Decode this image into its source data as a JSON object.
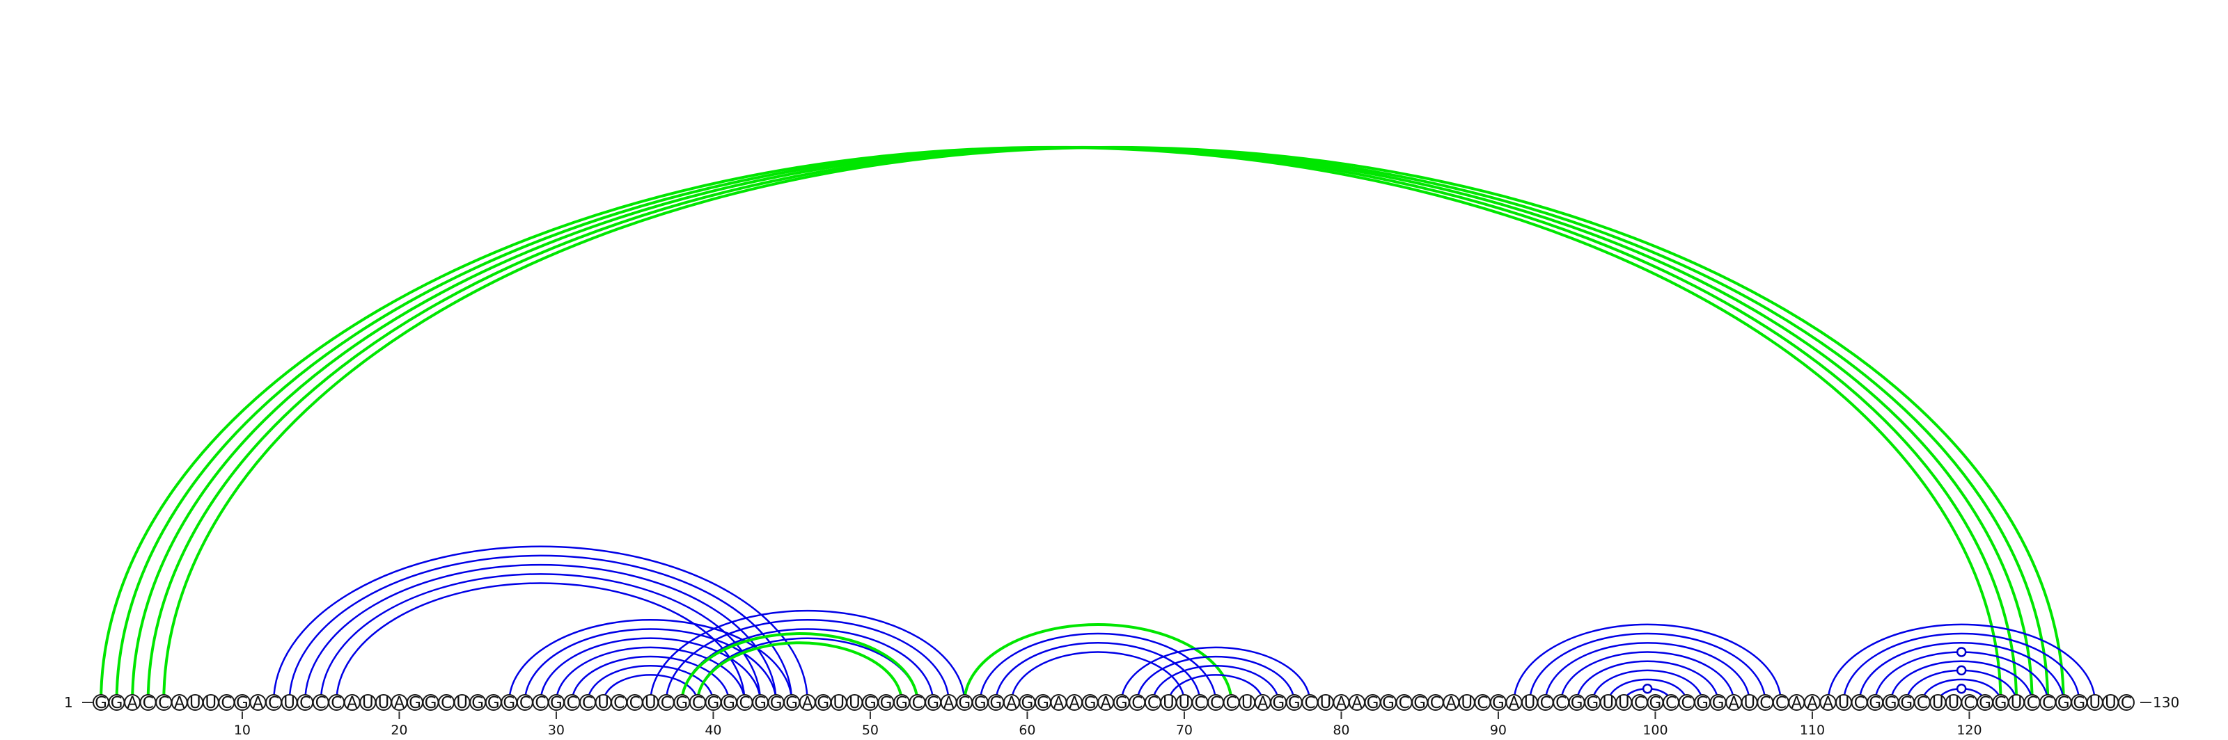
{
  "sequence": "GGACCAUUCGACUCCCAUUAGGCUGGGCCGCCUCCUCGCGGCGGGAGUUGGGCGAGGGAGGAAGAGCCUUCCCUAGGCUAAGGCGCAUCGAUCCGGUUCGCCGGAUCCAAAUCGGGCUUCGGUCCGGUUC",
  "start_label": "1",
  "end_label": "130",
  "tick_positions": [
    10,
    20,
    30,
    40,
    50,
    60,
    70,
    80,
    90,
    100,
    110,
    120
  ],
  "colors": {
    "primary_pairs": "#0000e6",
    "alternative_pairs": "#00e600",
    "marker": "#0000cc"
  },
  "arc_groups": [
    {
      "color": "alternative_pairs",
      "pairs": [
        [
          1,
          122
        ],
        [
          2,
          123
        ],
        [
          3,
          124
        ],
        [
          4,
          125
        ],
        [
          5,
          126
        ]
      ]
    },
    {
      "color": "primary_pairs",
      "pairs": [
        [
          12,
          46
        ],
        [
          13,
          45
        ],
        [
          14,
          44
        ],
        [
          15,
          43
        ],
        [
          16,
          42
        ]
      ]
    },
    {
      "color": "primary_pairs",
      "pairs": [
        [
          27,
          45
        ],
        [
          28,
          44
        ],
        [
          29,
          43
        ],
        [
          30,
          42
        ],
        [
          31,
          41
        ],
        [
          32,
          40
        ],
        [
          33,
          39
        ]
      ]
    },
    {
      "color": "primary_pairs",
      "pairs": [
        [
          36,
          56
        ],
        [
          37,
          55
        ],
        [
          38,
          54
        ],
        [
          39,
          53
        ]
      ]
    },
    {
      "color": "alternative_pairs",
      "pairs": [
        [
          38,
          53
        ],
        [
          39,
          52
        ]
      ]
    },
    {
      "color": "alternative_pairs",
      "pairs": [
        [
          56,
          73
        ]
      ]
    },
    {
      "color": "primary_pairs",
      "pairs": [
        [
          57,
          72
        ],
        [
          58,
          71
        ],
        [
          59,
          70
        ]
      ]
    },
    {
      "color": "primary_pairs",
      "pairs": [
        [
          66,
          78
        ],
        [
          67,
          77
        ],
        [
          68,
          76
        ],
        [
          69,
          75
        ]
      ]
    },
    {
      "color": "primary_pairs",
      "pairs": [
        [
          91,
          108
        ],
        [
          92,
          107
        ],
        [
          93,
          106
        ],
        [
          94,
          105
        ],
        [
          95,
          104
        ],
        [
          96,
          103
        ],
        [
          97,
          102
        ],
        [
          98,
          101
        ]
      ]
    },
    {
      "color": "primary_pairs",
      "pairs": [
        [
          111,
          128
        ],
        [
          112,
          127
        ],
        [
          113,
          126
        ],
        [
          114,
          125
        ],
        [
          115,
          124
        ],
        [
          116,
          123
        ],
        [
          117,
          122
        ],
        [
          118,
          121
        ]
      ]
    }
  ],
  "markers": [
    [
      98,
      101
    ],
    [
      118,
      121
    ],
    [
      116,
      123
    ],
    [
      114,
      125
    ]
  ]
}
